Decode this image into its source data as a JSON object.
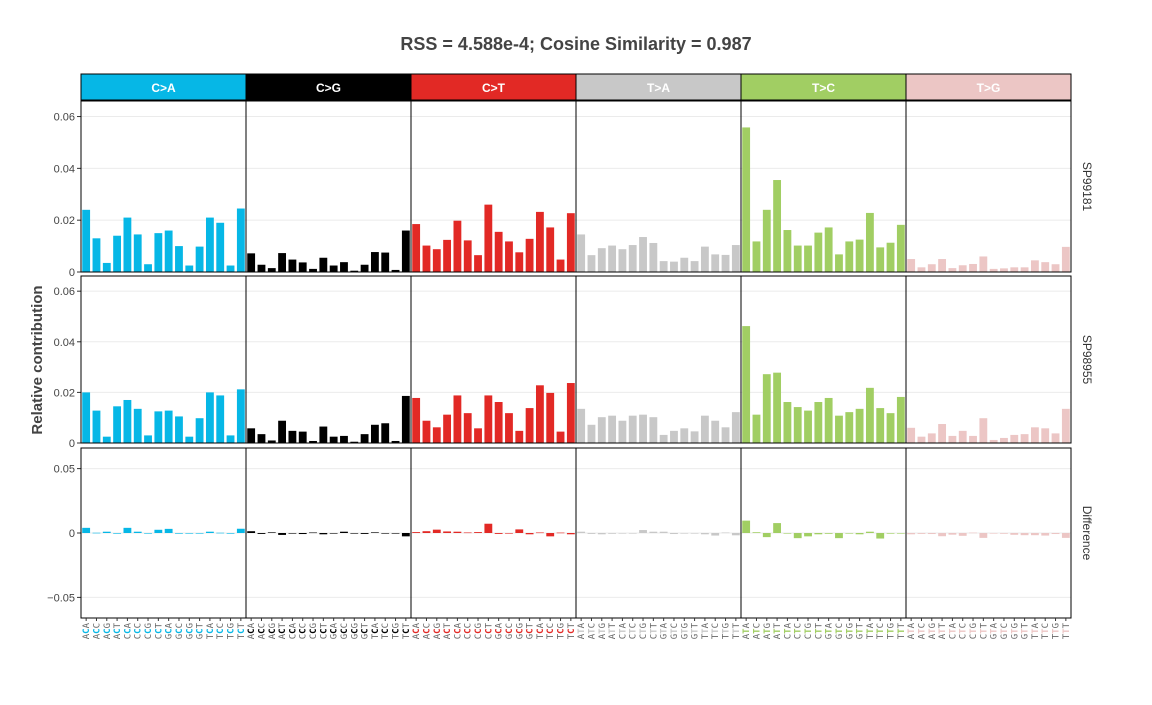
{
  "chart_data": {
    "type": "bar",
    "title": "RSS = 4.588e-4; Cosine Similarity = 0.987",
    "ylabel": "Relative contribution",
    "facets": [
      {
        "label": "C>A",
        "color": "#06b7e6",
        "label_color": "#ffffff"
      },
      {
        "label": "C>G",
        "color": "#000000",
        "label_color": "#ffffff"
      },
      {
        "label": "C>T",
        "color": "#e22925",
        "label_color": "#ffffff"
      },
      {
        "label": "T>A",
        "color": "#c8c8c8",
        "label_color": "#ffffff"
      },
      {
        "label": "T>C",
        "color": "#a1ce63",
        "label_color": "#ffffff"
      },
      {
        "label": "T>G",
        "color": "#ecc6c5",
        "label_color": "#ffffff"
      }
    ],
    "rows": [
      {
        "label": "SP99181",
        "ylim": [
          0,
          0.066
        ],
        "ticks": [
          0,
          0.02,
          0.04,
          0.06
        ],
        "tick_labels": [
          "0",
          "0.02",
          "0.04",
          "0.06"
        ]
      },
      {
        "label": "SP98955",
        "ylim": [
          0,
          0.066
        ],
        "ticks": [
          0,
          0.02,
          0.04,
          0.06
        ],
        "tick_labels": [
          "0",
          "0.02",
          "0.04",
          "0.06"
        ]
      },
      {
        "label": "Difference",
        "ylim": [
          -0.066,
          0.066
        ],
        "ticks": [
          -0.05,
          0,
          0.05
        ],
        "tick_labels": [
          "−0.05",
          "0",
          "0.05"
        ]
      }
    ],
    "categories": [
      [
        "ACA",
        "ACC",
        "ACG",
        "ACT",
        "CCA",
        "CCC",
        "CCG",
        "CCT",
        "GCA",
        "GCC",
        "GCG",
        "GCT",
        "TCA",
        "TCC",
        "TCG",
        "TCT"
      ],
      [
        "ACA",
        "ACC",
        "ACG",
        "ACT",
        "CCA",
        "CCC",
        "CCG",
        "CCT",
        "GCA",
        "GCC",
        "GCG",
        "GCT",
        "TCA",
        "TCC",
        "TCG",
        "TCT"
      ],
      [
        "ACA",
        "ACC",
        "ACG",
        "ACT",
        "CCA",
        "CCC",
        "CCG",
        "CCT",
        "GCA",
        "GCC",
        "GCG",
        "GCT",
        "TCA",
        "TCC",
        "TCG",
        "TCT"
      ],
      [
        "ATA",
        "ATC",
        "ATG",
        "ATT",
        "CTA",
        "CTC",
        "CTG",
        "CTT",
        "GTA",
        "GTC",
        "GTG",
        "GTT",
        "TTA",
        "TTC",
        "TTG",
        "TTT"
      ],
      [
        "ATA",
        "ATC",
        "ATG",
        "ATT",
        "CTA",
        "CTC",
        "CTG",
        "CTT",
        "GTA",
        "GTC",
        "GTG",
        "GTT",
        "TTA",
        "TTC",
        "TTG",
        "TTT"
      ],
      [
        "ATA",
        "ATC",
        "ATG",
        "ATT",
        "CTA",
        "CTC",
        "CTG",
        "CTT",
        "GTA",
        "GTC",
        "GTG",
        "GTT",
        "TTA",
        "TTC",
        "TTG",
        "TTT"
      ]
    ],
    "series": [
      {
        "name": "SP99181",
        "values": [
          [
            0.024,
            0.013,
            0.0035,
            0.014,
            0.021,
            0.0145,
            0.003,
            0.015,
            0.016,
            0.01,
            0.0025,
            0.0098,
            0.021,
            0.019,
            0.0025,
            0.0245
          ],
          [
            0.0072,
            0.0028,
            0.0015,
            0.0073,
            0.0048,
            0.0037,
            0.0012,
            0.0055,
            0.0025,
            0.0038,
            0.0005,
            0.0028,
            0.0077,
            0.0075,
            0.0008,
            0.016
          ],
          [
            0.0185,
            0.0102,
            0.0088,
            0.0124,
            0.0198,
            0.0122,
            0.0065,
            0.026,
            0.0155,
            0.0118,
            0.0076,
            0.0128,
            0.0232,
            0.0172,
            0.0048,
            0.0227
          ],
          [
            0.0145,
            0.0065,
            0.0092,
            0.0102,
            0.0088,
            0.0104,
            0.0135,
            0.0112,
            0.0042,
            0.004,
            0.0055,
            0.0042,
            0.0098,
            0.0068,
            0.0066,
            0.0104
          ],
          [
            0.0558,
            0.0118,
            0.024,
            0.0355,
            0.0162,
            0.0102,
            0.0102,
            0.0152,
            0.0172,
            0.0068,
            0.0118,
            0.0125,
            0.0228,
            0.0095,
            0.0113,
            0.0182
          ],
          [
            0.005,
            0.0018,
            0.003,
            0.005,
            0.0015,
            0.0026,
            0.0031,
            0.006,
            0.0012,
            0.0014,
            0.0018,
            0.0018,
            0.0045,
            0.0038,
            0.003,
            0.0097
          ]
        ]
      },
      {
        "name": "SP98955",
        "values": [
          [
            0.02,
            0.0128,
            0.0025,
            0.0145,
            0.017,
            0.0135,
            0.003,
            0.0125,
            0.0128,
            0.0105,
            0.0025,
            0.0098,
            0.02,
            0.0188,
            0.003,
            0.0212
          ],
          [
            0.0058,
            0.0035,
            0.001,
            0.0088,
            0.0048,
            0.0045,
            0.0008,
            0.0065,
            0.0025,
            0.0028,
            0.0005,
            0.0035,
            0.0072,
            0.0078,
            0.0008,
            0.0186
          ],
          [
            0.0178,
            0.0088,
            0.0062,
            0.0112,
            0.0188,
            0.0118,
            0.0058,
            0.0188,
            0.0162,
            0.0118,
            0.0048,
            0.0138,
            0.0228,
            0.0198,
            0.0045,
            0.0237
          ],
          [
            0.0135,
            0.0072,
            0.0102,
            0.0108,
            0.0088,
            0.0108,
            0.0112,
            0.0102,
            0.0032,
            0.0048,
            0.0058,
            0.0046,
            0.0108,
            0.0088,
            0.0062,
            0.0122
          ],
          [
            0.0462,
            0.0112,
            0.0272,
            0.0278,
            0.0162,
            0.0142,
            0.0128,
            0.0162,
            0.0178,
            0.0108,
            0.0122,
            0.0135,
            0.0218,
            0.0138,
            0.0118,
            0.0182
          ],
          [
            0.006,
            0.0025,
            0.0038,
            0.0075,
            0.0028,
            0.0048,
            0.0028,
            0.0098,
            0.0012,
            0.002,
            0.0032,
            0.0035,
            0.0062,
            0.0058,
            0.0038,
            0.0135
          ]
        ]
      },
      {
        "name": "Difference",
        "values": [
          [
            0.004,
            0.0002,
            0.001,
            -0.0005,
            0.004,
            0.001,
            0,
            0.0025,
            0.0032,
            -0.0005,
            0,
            0,
            0.001,
            0.0002,
            -0.0005,
            0.0033
          ],
          [
            0.0014,
            -0.0007,
            0.0005,
            -0.0015,
            0,
            -0.0008,
            0.0004,
            -0.001,
            0,
            0.001,
            0,
            -0.0007,
            0.0005,
            -0.0003,
            0,
            -0.0026
          ],
          [
            0.0007,
            0.0014,
            0.0026,
            0.0012,
            0.001,
            0.0004,
            0.0007,
            0.0072,
            -0.0007,
            0,
            0.0028,
            -0.001,
            0.0004,
            -0.0026,
            0.0003,
            -0.001
          ],
          [
            0.001,
            -0.0007,
            -0.001,
            -0.0006,
            0,
            -0.0004,
            0.0023,
            0.001,
            0.001,
            -0.0008,
            -0.0003,
            -0.0004,
            -0.001,
            -0.002,
            0.0004,
            -0.0018
          ],
          [
            0.0096,
            0.0006,
            -0.0032,
            0.0077,
            0,
            -0.004,
            -0.0026,
            -0.001,
            -0.0006,
            -0.004,
            -0.0004,
            -0.001,
            0.001,
            -0.0043,
            -0.0005,
            0
          ],
          [
            -0.001,
            -0.0007,
            -0.0008,
            -0.0025,
            -0.0013,
            -0.0022,
            0.0003,
            -0.0038,
            0,
            -0.0006,
            -0.0014,
            -0.0017,
            -0.0017,
            -0.002,
            -0.0008,
            -0.0038
          ]
        ]
      }
    ],
    "grid": true,
    "legend": "none"
  }
}
